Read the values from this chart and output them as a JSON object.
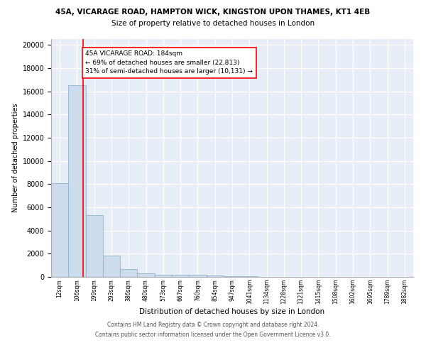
{
  "title1": "45A, VICARAGE ROAD, HAMPTON WICK, KINGSTON UPON THAMES, KT1 4EB",
  "title2": "Size of property relative to detached houses in London",
  "xlabel": "Distribution of detached houses by size in London",
  "ylabel": "Number of detached properties",
  "bin_labels": [
    "12sqm",
    "106sqm",
    "199sqm",
    "293sqm",
    "386sqm",
    "480sqm",
    "573sqm",
    "667sqm",
    "760sqm",
    "854sqm",
    "947sqm",
    "1041sqm",
    "1134sqm",
    "1228sqm",
    "1321sqm",
    "1415sqm",
    "1508sqm",
    "1602sqm",
    "1695sqm",
    "1789sqm",
    "1882sqm"
  ],
  "bar_heights": [
    8100,
    16500,
    5300,
    1850,
    700,
    300,
    200,
    175,
    175,
    100,
    50,
    50,
    30,
    20,
    15,
    10,
    8,
    6,
    5,
    4,
    0
  ],
  "bar_color": "#cddcec",
  "bar_edge_color": "#7faacb",
  "annotation_text": "45A VICARAGE ROAD: 184sqm\n← 69% of detached houses are smaller (22,813)\n31% of semi-detached houses are larger (10,131) →",
  "annotation_box_color": "white",
  "annotation_box_edge": "red",
  "ylim": [
    0,
    20500
  ],
  "yticks": [
    0,
    2000,
    4000,
    6000,
    8000,
    10000,
    12000,
    14000,
    16000,
    18000,
    20000
  ],
  "footer1": "Contains HM Land Registry data © Crown copyright and database right 2024.",
  "footer2": "Contains public sector information licensed under the Open Government Licence v3.0.",
  "bg_color": "#e8eef8",
  "grid_color": "#d0d8e8"
}
